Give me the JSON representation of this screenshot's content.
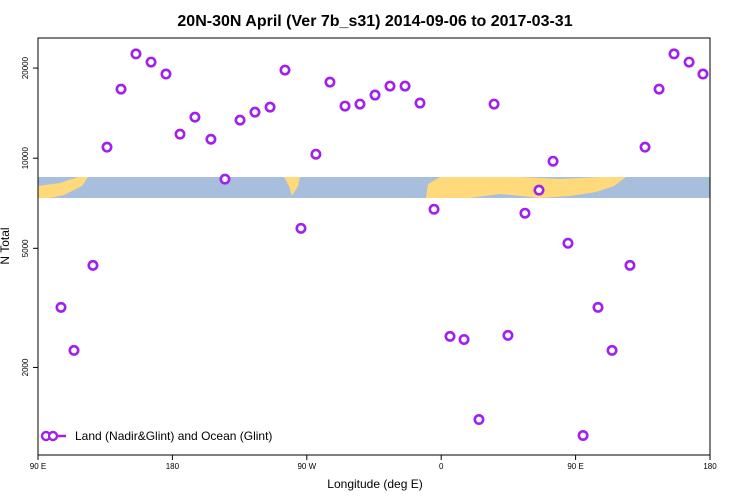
{
  "chart_data": {
    "type": "scatter",
    "title": "20N-30N April (Ver 7b_s31)   2014-09-06 to 2017-03-31",
    "xlabel": "Longitude (deg E)",
    "ylabel": "N Total",
    "xlim": [
      90,
      540
    ],
    "ylim": [
      1020,
      25200
    ],
    "log_y": true,
    "xticks": [
      {
        "value": 90,
        "label": "90 E"
      },
      180,
      {
        "value": 270,
        "label": "90 W"
      },
      {
        "value": 360,
        "label": "0"
      },
      {
        "value": 450,
        "label": "90 E"
      },
      {
        "value": 540,
        "label": "180"
      }
    ],
    "yticks": [
      2000,
      5000,
      10000,
      20000
    ],
    "legend": "bottom-left",
    "series": [
      {
        "name": "Land (Nadir&Glint) and Ocean (Glint)",
        "color": "#a020f0",
        "x": [
          105.4,
          114.1,
          126.8,
          136.2,
          145.6,
          155.6,
          165.7,
          175.7,
          185.1,
          195.1,
          205.8,
          215.2,
          225.3,
          235.3,
          245.4,
          255.4,
          266.1,
          276.1,
          285.5,
          295.6,
          305.6,
          315.7,
          325.7,
          335.8,
          345.8,
          355.2,
          365.9,
          375.3,
          385.3,
          395.4,
          404.7,
          416.1,
          425.5,
          434.9,
          444.9,
          455.0,
          465.0,
          474.4,
          486.4,
          496.5,
          505.9,
          515.9,
          526.0,
          535.3
        ],
        "values": [
          3175,
          2280,
          4385,
          10884,
          17010,
          22300,
          20940,
          19100,
          12030,
          13710,
          11570,
          8510,
          13400,
          14250,
          14810,
          19690,
          5830,
          10310,
          17950,
          14930,
          15160,
          16250,
          17410,
          17410,
          15280,
          6750,
          2540,
          2480,
          1340,
          15160,
          2560,
          6550,
          7820,
          9770,
          5200,
          1185,
          3175,
          2280,
          4385,
          10884,
          17010,
          22300,
          20940,
          19100
        ]
      }
    ]
  }
}
